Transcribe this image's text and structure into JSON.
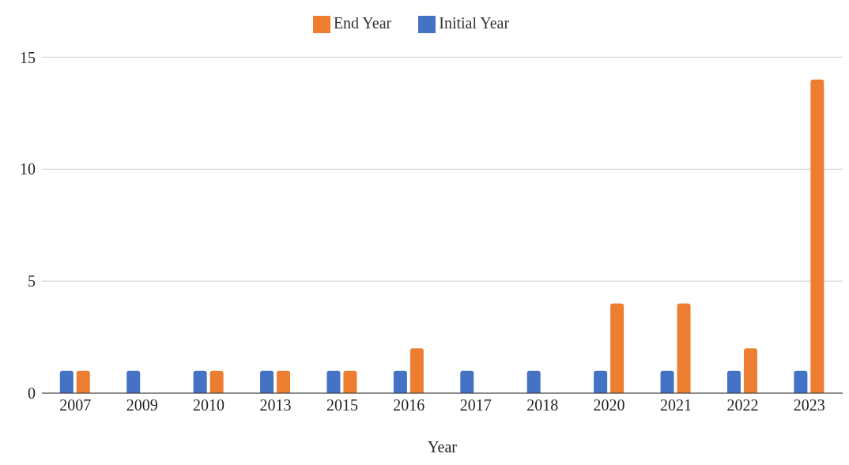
{
  "chart_data": {
    "type": "bar",
    "xlabel": "Year",
    "categories": [
      "2007",
      "2009",
      "2010",
      "2013",
      "2015",
      "2016",
      "2017",
      "2018",
      "2020",
      "2021",
      "2022",
      "2023"
    ],
    "series": [
      {
        "name": "Initial Year",
        "color": "#4472c4",
        "values": [
          1,
          1,
          1,
          1,
          1,
          1,
          1,
          1,
          1,
          1,
          1,
          1
        ]
      },
      {
        "name": "End Year",
        "color": "#ed7d31",
        "values": [
          1,
          0,
          1,
          1,
          1,
          2,
          0,
          0,
          4,
          4,
          2,
          14
        ]
      }
    ],
    "ylim": [
      0,
      15
    ],
    "yticks": [
      0,
      5,
      10,
      15
    ],
    "grid": "y",
    "legend": "top"
  }
}
